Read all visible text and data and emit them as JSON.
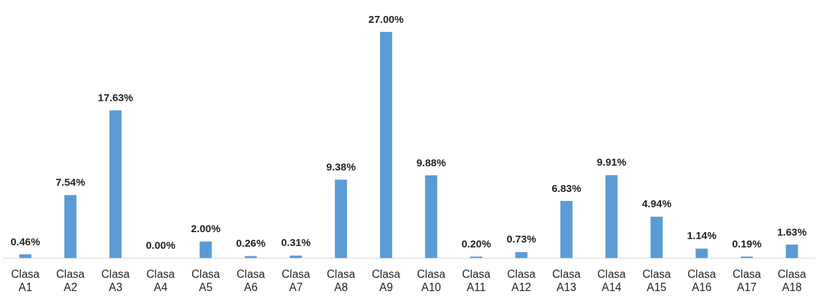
{
  "chart_data": {
    "type": "bar",
    "categories": [
      "Clasa A1",
      "Clasa A2",
      "Clasa A3",
      "Clasa A4",
      "Clasa A5",
      "Clasa A6",
      "Clasa A7",
      "Clasa A8",
      "Clasa A9",
      "Clasa A10",
      "Clasa A11",
      "Clasa A12",
      "Clasa A13",
      "Clasa A14",
      "Clasa A15",
      "Clasa A16",
      "Clasa A17",
      "Clasa A18"
    ],
    "values": [
      0.46,
      7.54,
      17.63,
      0,
      2,
      0.26,
      0.31,
      9.38,
      27,
      9.88,
      0.2,
      0.73,
      6.83,
      9.91,
      4.94,
      1.14,
      0.19,
      1.63
    ],
    "value_labels": [
      "0.46%",
      "7.54%",
      "17.63%",
      "0.00%",
      "2.00%",
      "0.26%",
      "0.31%",
      "9.38%",
      "27.00%",
      "9.88%",
      "0.20%",
      "0.73%",
      "6.83%",
      "9.91%",
      "4.94%",
      "1.14%",
      "0.19%",
      "1.63%"
    ],
    "color": "#5b9bd5",
    "grid": false,
    "legend": false
  }
}
